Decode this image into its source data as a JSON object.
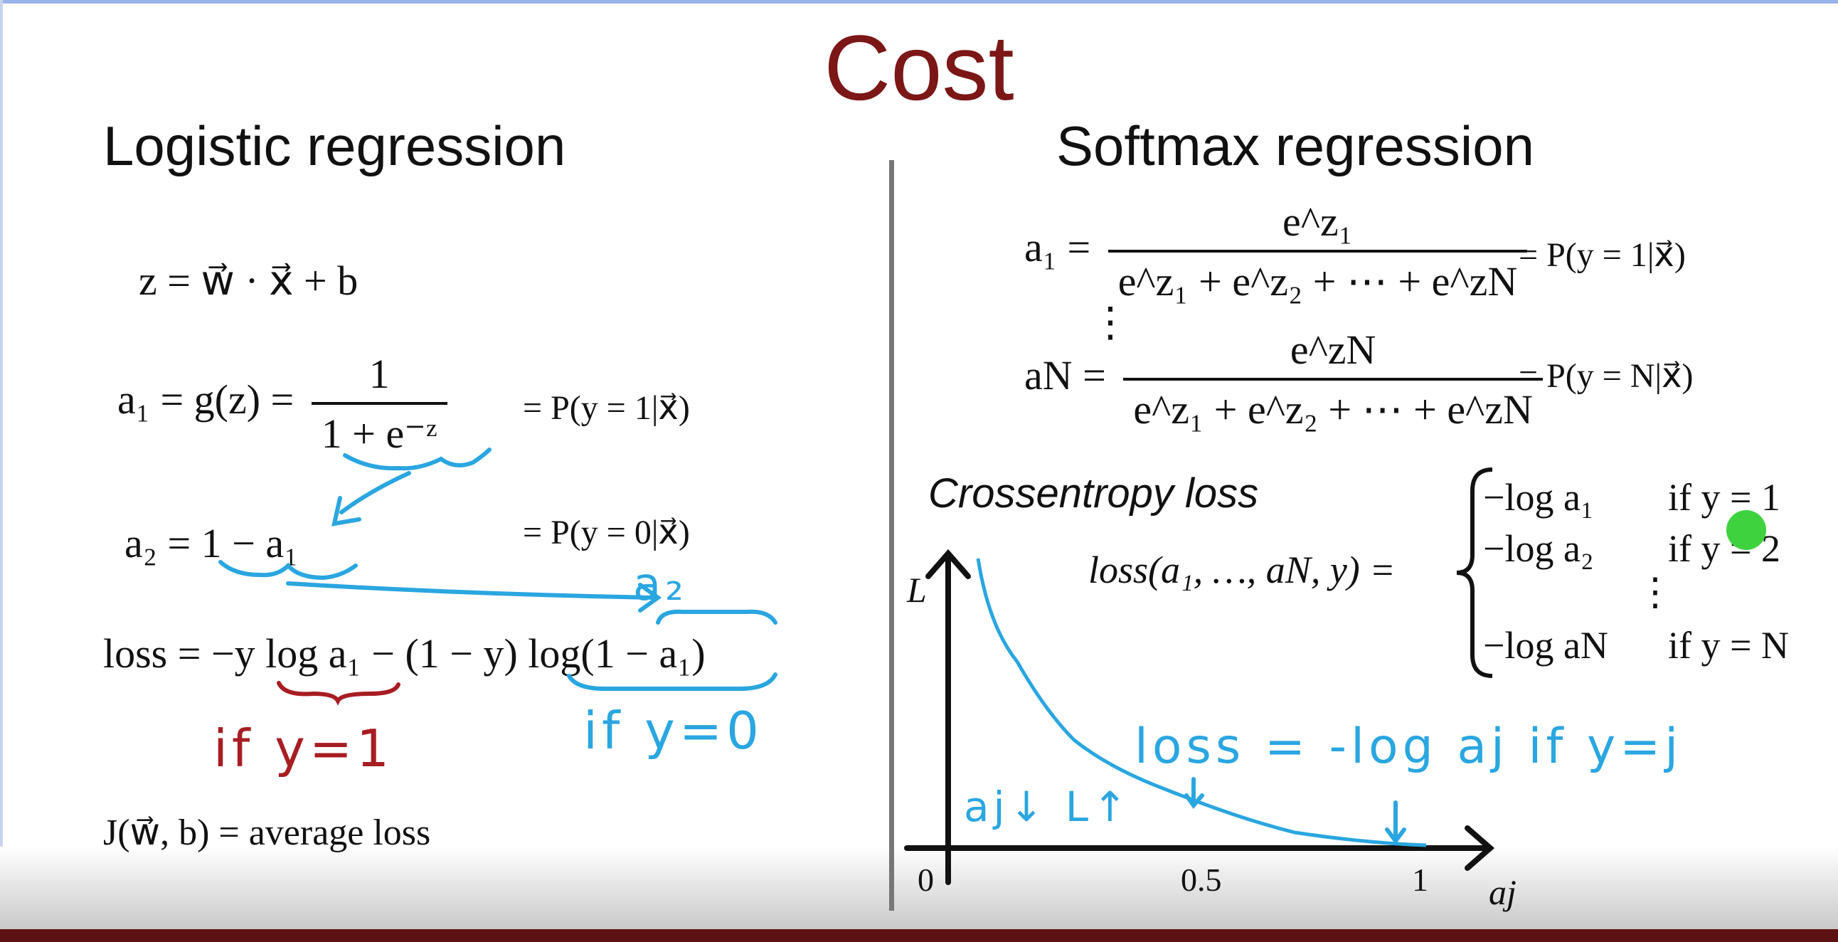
{
  "title": "Cost",
  "left": {
    "heading": "Logistic regression",
    "z_eq": "z = w⃗ · x⃗ + b",
    "a1_lhs": "a₁ = g(z) =",
    "a1_num": "1",
    "a1_den": "1 + e⁻ᶻ",
    "a1_prob": "= P(y = 1|x⃗)",
    "a2_eq": "a₂ = 1 − a₁",
    "a2_prob": "= P(y = 0|x⃗)",
    "loss_eq": "loss = −y log a₁ − (1 − y) log(1 − a₁)",
    "cost_eq": "J(w⃗, b) = average loss"
  },
  "right": {
    "heading": "Softmax regression",
    "a1_lhs": "a₁ =",
    "a1_num": "e^z₁",
    "a1_den": "e^z₁ + e^z₂ + ⋯ + e^zN",
    "a1_prob": "= P(y = 1|x⃗)",
    "vdots": "⋮",
    "aN_lhs": "aN =",
    "aN_num": "e^zN",
    "aN_den": "e^z₁ + e^z₂ + ⋯ + e^zN",
    "aN_prob": "= P(y = N|x⃗)",
    "crossentropy_heading": "Crossentropy loss",
    "loss_lhs": "loss(a₁, …, aN, y) =",
    "cases": [
      {
        "expr": "−log a₁",
        "cond": "if y = 1"
      },
      {
        "expr": "−log a₂",
        "cond": "if y = 2"
      },
      {
        "expr": "⋮",
        "cond": ""
      },
      {
        "expr": "−log aN",
        "cond": "if y = N"
      }
    ]
  },
  "annotations": {
    "a2_handwritten": "a₂",
    "if_y_1": "if y=1",
    "if_y_0": "if y=0",
    "loss_neg_log": "loss = -log aj  if y=j",
    "aj_down_L_up": "aj↓ L↑"
  },
  "graph": {
    "y_label": "L",
    "x_label": "aj",
    "x_ticks": [
      "0",
      "0.5",
      "1"
    ]
  },
  "colors": {
    "title": "#7b1716",
    "ink_red": "#a71d23",
    "ink_blue": "#2aa6e0",
    "pointer": "#3ed23e"
  }
}
